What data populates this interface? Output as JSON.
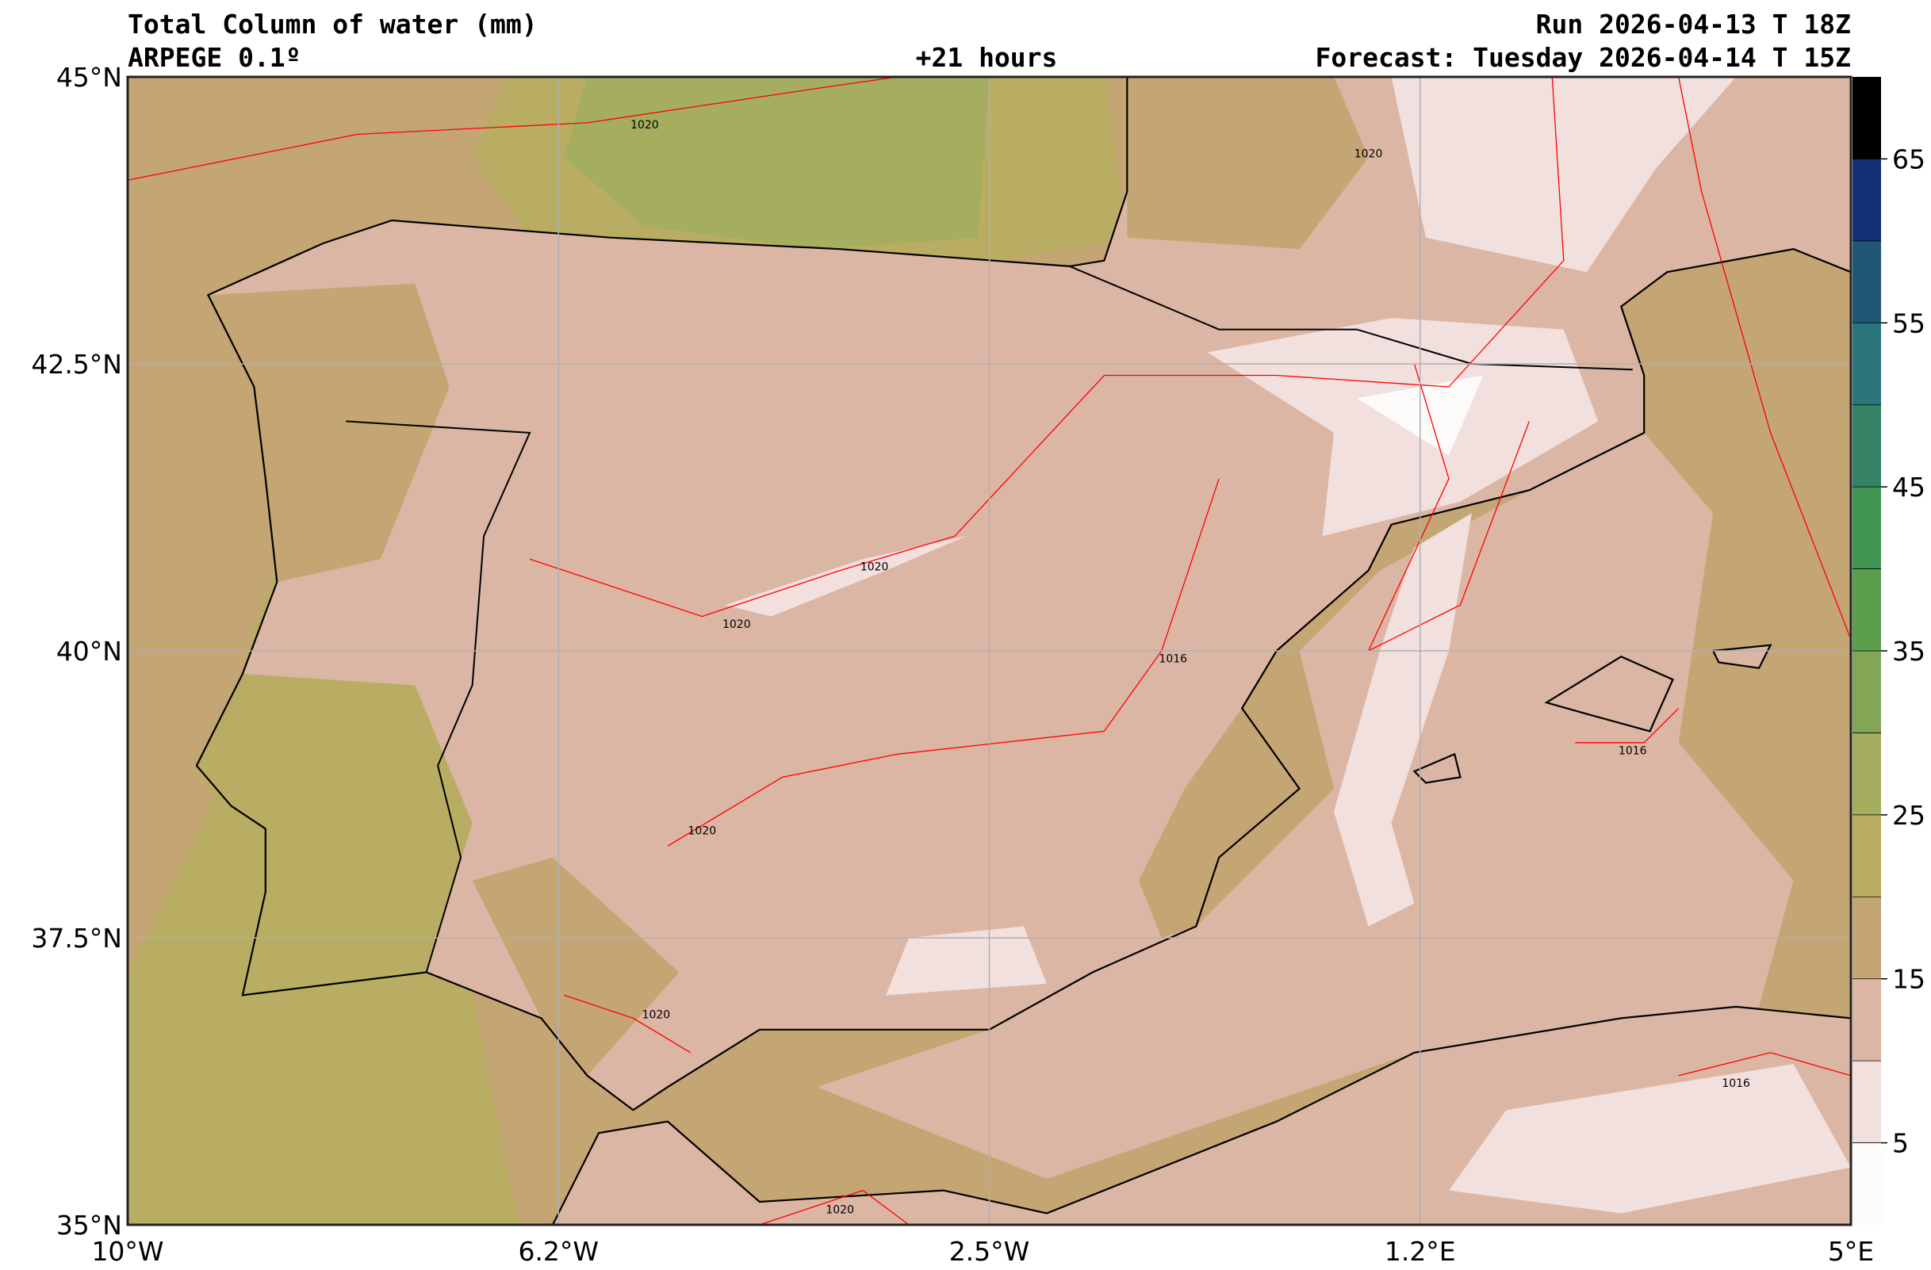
{
  "header": {
    "title": "Total Column of water (mm)",
    "model": "ARPEGE 0.1º",
    "lead": "+21 hours",
    "run": "Run 2026-04-13 T 18Z",
    "forecast": "Forecast: Tuesday 2026-04-14 T 15Z"
  },
  "map": {
    "lon_range": [
      -10,
      5
    ],
    "lat_range": [
      35,
      45
    ],
    "lon_ticks": [
      {
        "value": -10,
        "label": "10°W"
      },
      {
        "value": -6.25,
        "label": "6.2°W"
      },
      {
        "value": -2.5,
        "label": "2.5°W"
      },
      {
        "value": 1.25,
        "label": "1.2°E"
      },
      {
        "value": 5,
        "label": "5°E"
      }
    ],
    "lat_ticks": [
      {
        "value": 35,
        "label": "35°N"
      },
      {
        "value": 37.5,
        "label": "37.5°N"
      },
      {
        "value": 40,
        "label": "40°N"
      },
      {
        "value": 42.5,
        "label": "42.5°N"
      },
      {
        "value": 45,
        "label": "45°N"
      }
    ],
    "contour_labels": [
      {
        "lon": -5.5,
        "lat": 44.55,
        "text": "1020"
      },
      {
        "lon": 0.8,
        "lat": 44.3,
        "text": "1020"
      },
      {
        "lon": -4.7,
        "lat": 40.2,
        "text": "1020"
      },
      {
        "lon": -3.5,
        "lat": 40.7,
        "text": "1020"
      },
      {
        "lon": -5.0,
        "lat": 38.4,
        "text": "1020"
      },
      {
        "lon": -0.9,
        "lat": 39.9,
        "text": "1016"
      },
      {
        "lon": 3.1,
        "lat": 39.1,
        "text": "1016"
      },
      {
        "lon": 4.0,
        "lat": 36.2,
        "text": "1016"
      },
      {
        "lon": -5.4,
        "lat": 36.8,
        "text": "1020"
      },
      {
        "lon": -3.8,
        "lat": 35.1,
        "text": "1020"
      }
    ]
  },
  "colorbar": {
    "levels": [
      0,
      5,
      10,
      15,
      20,
      25,
      30,
      35,
      40,
      45,
      50,
      55,
      60,
      65,
      70
    ],
    "colors": [
      "#fdfafa",
      "#f2e0de",
      "#dcb6a4",
      "#c4a574",
      "#b8ad62",
      "#a4ae5e",
      "#82a656",
      "#5a9e4e",
      "#419552",
      "#358265",
      "#2b767b",
      "#205676",
      "#132f75",
      "#000000"
    ],
    "tick_labels": [
      "5",
      "15",
      "25",
      "35",
      "45",
      "55",
      "65"
    ]
  }
}
